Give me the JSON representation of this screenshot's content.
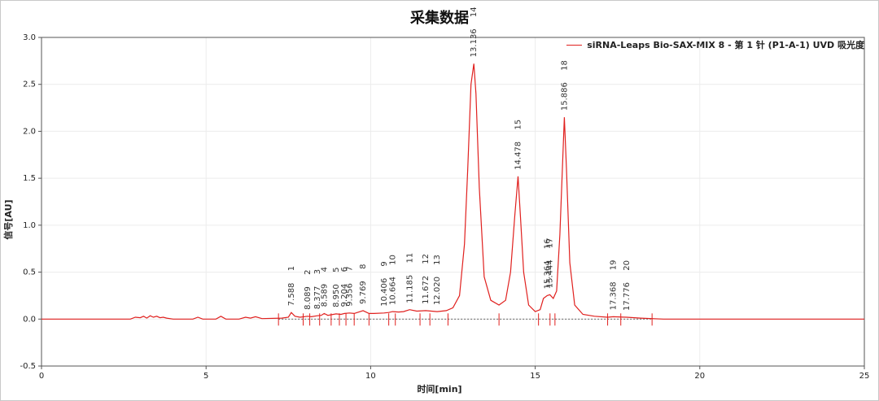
{
  "chart_data": {
    "type": "line",
    "title": "采集数据",
    "xlabel": "时间[min]",
    "ylabel": "信号[AU]",
    "xlim": [
      0,
      25
    ],
    "ylim": [
      -0.5,
      3.0
    ],
    "xticks": [
      "0",
      "5",
      "10",
      "15",
      "20",
      "25"
    ],
    "yticks": [
      "-0.5",
      "0.0",
      "0.5",
      "1.0",
      "1.5",
      "2.0",
      "2.5",
      "3.0"
    ],
    "grid": true,
    "legend_position": "top-right",
    "series": [
      {
        "name": "siRNA-Leaps Bio-SAX-MIX 8 - 第 1 针 (P1-A-1) UVD 吸光度",
        "color": "#e0201e",
        "x": [
          0,
          2.7,
          2.85,
          3.0,
          3.1,
          3.2,
          3.3,
          3.4,
          3.5,
          3.6,
          3.7,
          3.8,
          4.0,
          4.6,
          4.75,
          4.9,
          5.3,
          5.45,
          5.6,
          6.0,
          6.2,
          6.35,
          6.5,
          6.7,
          7.3,
          7.5,
          7.588,
          7.7,
          7.85,
          8.089,
          8.2,
          8.377,
          8.5,
          8.589,
          8.7,
          8.95,
          9.1,
          9.204,
          9.356,
          9.5,
          9.769,
          9.95,
          10.1,
          10.406,
          10.55,
          10.664,
          10.85,
          11.0,
          11.185,
          11.4,
          11.672,
          11.85,
          12.02,
          12.3,
          12.5,
          12.7,
          12.85,
          12.95,
          13.05,
          13.136,
          13.2,
          13.3,
          13.45,
          13.65,
          13.9,
          14.1,
          14.25,
          14.38,
          14.478,
          14.55,
          14.65,
          14.8,
          15.0,
          15.15,
          15.25,
          15.364,
          15.444,
          15.55,
          15.65,
          15.75,
          15.886,
          15.95,
          16.05,
          16.2,
          16.45,
          16.8,
          17.2,
          17.368,
          17.776,
          18.2,
          18.9,
          20.0,
          25.0
        ],
        "y": [
          0.0,
          0.0,
          0.02,
          0.015,
          0.03,
          0.01,
          0.035,
          0.02,
          0.03,
          0.015,
          0.02,
          0.01,
          0.0,
          0.0,
          0.02,
          0.0,
          0.0,
          0.03,
          0.0,
          0.0,
          0.02,
          0.01,
          0.025,
          0.005,
          0.01,
          0.02,
          0.07,
          0.03,
          0.02,
          0.03,
          0.025,
          0.035,
          0.04,
          0.06,
          0.04,
          0.055,
          0.05,
          0.06,
          0.065,
          0.06,
          0.09,
          0.06,
          0.06,
          0.065,
          0.07,
          0.08,
          0.075,
          0.08,
          0.1,
          0.085,
          0.09,
          0.085,
          0.08,
          0.09,
          0.12,
          0.25,
          0.8,
          1.6,
          2.5,
          2.72,
          2.4,
          1.4,
          0.45,
          0.2,
          0.15,
          0.2,
          0.5,
          1.1,
          1.52,
          1.1,
          0.5,
          0.15,
          0.08,
          0.1,
          0.22,
          0.25,
          0.26,
          0.22,
          0.3,
          0.9,
          2.15,
          1.6,
          0.6,
          0.15,
          0.05,
          0.03,
          0.02,
          0.025,
          0.02,
          0.01,
          0.0,
          0.0,
          0.0
        ]
      }
    ],
    "peaks": [
      {
        "rt": "7.588",
        "num": "1",
        "x": 7.588,
        "y": 0.07
      },
      {
        "rt": "8.089",
        "num": "2",
        "x": 8.089,
        "y": 0.03
      },
      {
        "rt": "8.377",
        "num": "3",
        "x": 8.377,
        "y": 0.035
      },
      {
        "rt": "8.589",
        "num": "4",
        "x": 8.589,
        "y": 0.06
      },
      {
        "rt": "8.950",
        "num": "5",
        "x": 8.95,
        "y": 0.055
      },
      {
        "rt": "9.204",
        "num": "6",
        "x": 9.204,
        "y": 0.06
      },
      {
        "rt": "9.356",
        "num": "7",
        "x": 9.356,
        "y": 0.065
      },
      {
        "rt": "9.769",
        "num": "8",
        "x": 9.769,
        "y": 0.09
      },
      {
        "rt": "10.406",
        "num": "9",
        "x": 10.406,
        "y": 0.065
      },
      {
        "rt": "10.664",
        "num": "10",
        "x": 10.664,
        "y": 0.08
      },
      {
        "rt": "11.185",
        "num": "11",
        "x": 11.185,
        "y": 0.1
      },
      {
        "rt": "11.672",
        "num": "12",
        "x": 11.672,
        "y": 0.09
      },
      {
        "rt": "12.020",
        "num": "13",
        "x": 12.02,
        "y": 0.08
      },
      {
        "rt": "13.136",
        "num": "14",
        "x": 13.136,
        "y": 2.72
      },
      {
        "rt": "14.478",
        "num": "15",
        "x": 14.478,
        "y": 1.52
      },
      {
        "rt": "15.364",
        "num": "16",
        "x": 15.364,
        "y": 0.25
      },
      {
        "rt": "15.444",
        "num": "17",
        "x": 15.444,
        "y": 0.26
      },
      {
        "rt": "15.886",
        "num": "18",
        "x": 15.886,
        "y": 2.15
      },
      {
        "rt": "17.368",
        "num": "19",
        "x": 17.368,
        "y": 0.025
      },
      {
        "rt": "17.776",
        "num": "20",
        "x": 17.776,
        "y": 0.02
      }
    ],
    "integration_markers_x": [
      7.2,
      7.95,
      8.15,
      8.45,
      8.8,
      9.05,
      9.25,
      9.5,
      9.95,
      10.55,
      10.75,
      11.5,
      11.8,
      12.35,
      13.9,
      15.1,
      15.45,
      15.6,
      17.2,
      17.6,
      18.55
    ]
  }
}
